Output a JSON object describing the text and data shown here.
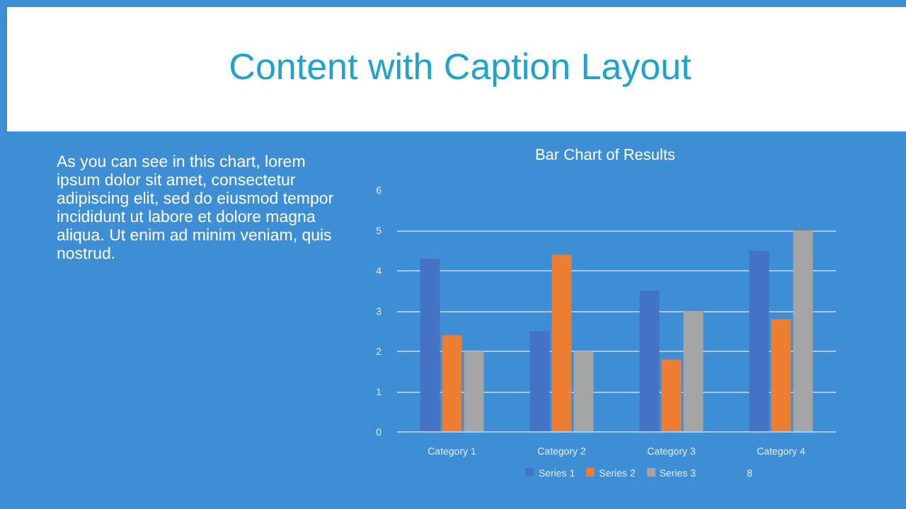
{
  "chart_data": {
    "type": "bar",
    "title": "Bar Chart of Results",
    "subtitle": "Content with Caption Layout",
    "annotations": [
      "As you can see in this chart, lorem ipsum dolor sit amet, consectetur adipiscing elit, sed do eiusmod tempor incididunt ut labore et dolore magna aliqua. Ut enim ad minim veniam, quis nostrud.",
      "8"
    ],
    "categories": [
      "Category 1",
      "Category 2",
      "Category 3",
      "Category 4"
    ],
    "series": [
      {
        "name": "Series 1",
        "color": "#4472c4",
        "values": [
          4.3,
          2.5,
          3.5,
          4.5
        ]
      },
      {
        "name": "Series 2",
        "color": "#ed7d31",
        "values": [
          2.4,
          4.4,
          1.8,
          2.8
        ]
      },
      {
        "name": "Series 3",
        "color": "#a5a5a5",
        "values": [
          2,
          2,
          3,
          5
        ]
      }
    ],
    "ylim": [
      0,
      6
    ],
    "yticks": [
      0,
      1,
      2,
      3,
      4,
      5,
      6
    ],
    "grid": "y",
    "legend": "bottom"
  }
}
